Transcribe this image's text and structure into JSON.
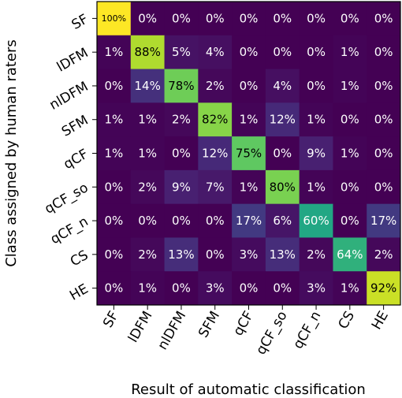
{
  "chart_data": {
    "type": "heatmap",
    "xlabel": "Result of automatic classification",
    "ylabel": "Class assigned by human raters",
    "x_categories": [
      "SF",
      "lDFM",
      "nlDFM",
      "SFM",
      "qCF",
      "qCF_so",
      "qCF_n",
      "CS",
      "HE"
    ],
    "y_categories": [
      "SF",
      "lDFM",
      "nlDFM",
      "SFM",
      "qCF",
      "qCF_so",
      "qCF_n",
      "CS",
      "HE"
    ],
    "values": [
      [
        100,
        0,
        0,
        0,
        0,
        0,
        0,
        0,
        0
      ],
      [
        1,
        88,
        5,
        4,
        0,
        0,
        0,
        1,
        0
      ],
      [
        0,
        14,
        78,
        2,
        0,
        4,
        0,
        1,
        0
      ],
      [
        1,
        1,
        2,
        82,
        1,
        12,
        1,
        0,
        0
      ],
      [
        1,
        1,
        0,
        12,
        75,
        0,
        9,
        1,
        0
      ],
      [
        0,
        2,
        9,
        7,
        1,
        80,
        1,
        0,
        0
      ],
      [
        0,
        0,
        0,
        0,
        17,
        6,
        60,
        0,
        17
      ],
      [
        0,
        2,
        13,
        0,
        3,
        13,
        2,
        64,
        2
      ],
      [
        0,
        1,
        0,
        3,
        0,
        0,
        3,
        1,
        92
      ]
    ],
    "labels": [
      [
        "100%",
        "0%",
        "0%",
        "0%",
        "0%",
        "0%",
        "0%",
        "0%",
        "0%"
      ],
      [
        "1%",
        "88%",
        "5%",
        "4%",
        "0%",
        "0%",
        "0%",
        "1%",
        "0%"
      ],
      [
        "0%",
        "14%",
        "78%",
        "2%",
        "0%",
        "4%",
        "0%",
        "1%",
        "0%"
      ],
      [
        "1%",
        "1%",
        "2%",
        "82%",
        "1%",
        "12%",
        "1%",
        "0%",
        "0%"
      ],
      [
        "1%",
        "1%",
        "0%",
        "12%",
        "75%",
        "0%",
        "9%",
        "1%",
        "0%"
      ],
      [
        "0%",
        "2%",
        "9%",
        "7%",
        "1%",
        "80%",
        "1%",
        "0%",
        "0%"
      ],
      [
        "0%",
        "0%",
        "0%",
        "0%",
        "17%",
        "6%",
        "60%",
        "0%",
        "17%"
      ],
      [
        "0%",
        "2%",
        "13%",
        "0%",
        "3%",
        "13%",
        "2%",
        "64%",
        "2%"
      ],
      [
        "0%",
        "1%",
        "0%",
        "3%",
        "0%",
        "0%",
        "3%",
        "1%",
        "92%"
      ]
    ],
    "value_range": [
      0,
      100
    ],
    "colormap": "viridis",
    "colors": {
      "low": "#440154",
      "high": "#fde725",
      "text_light": "#ffffff",
      "text_dark": "#000000"
    },
    "grid": false
  }
}
